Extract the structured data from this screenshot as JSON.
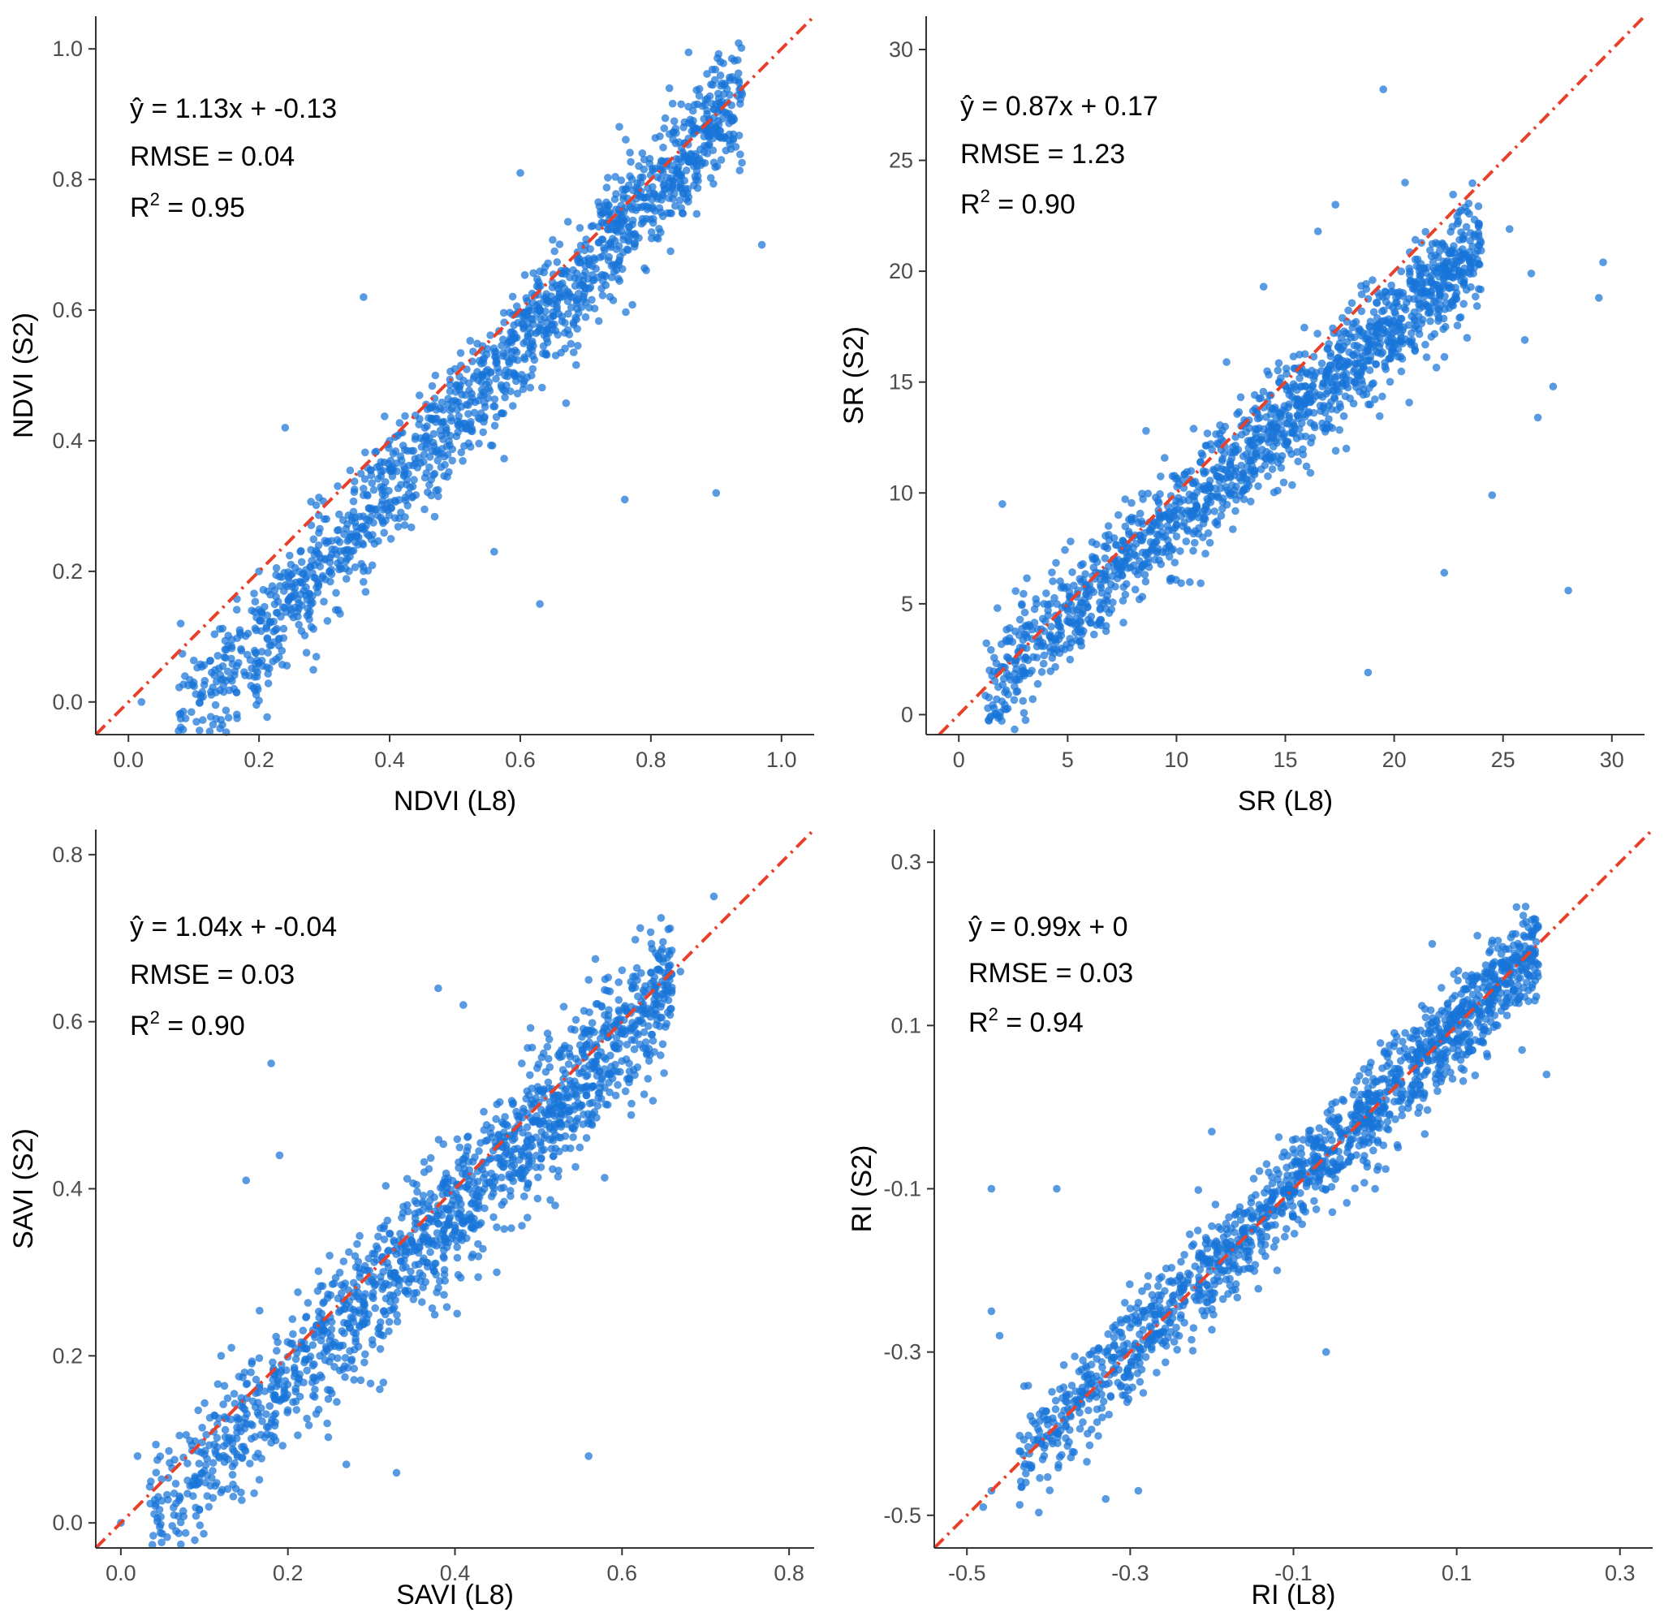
{
  "colors": {
    "points": "#1874d8",
    "reference_line": "#e8412b",
    "axis": "#333333"
  },
  "chart_data": [
    {
      "type": "scatter",
      "id": "ndvi",
      "xlabel": "NDVI (L8)",
      "ylabel": "NDVI (S2)",
      "xlim": [
        -0.05,
        1.05
      ],
      "ylim": [
        -0.05,
        1.05
      ],
      "xticks": [
        0.0,
        0.2,
        0.4,
        0.6,
        0.8,
        1.0
      ],
      "xtick_labels": [
        "0.0",
        "0.2",
        "0.4",
        "0.6",
        "0.8",
        "1.0"
      ],
      "yticks": [
        0.0,
        0.2,
        0.4,
        0.6,
        0.8,
        1.0
      ],
      "ytick_labels": [
        "0.0",
        "0.2",
        "0.4",
        "0.6",
        "0.8",
        "1.0"
      ],
      "reference_line": "1:1",
      "annotation": {
        "equation": "ŷ = 1.13x + -0.13",
        "rmse": "RMSE = 0.04",
        "r2_label": "R",
        "r2_value": " = 0.95"
      },
      "points": [
        [
          0.02,
          0.0
        ],
        [
          0.08,
          0.12
        ],
        [
          0.1,
          0.03
        ],
        [
          0.15,
          0.08
        ],
        [
          0.24,
          0.42
        ],
        [
          0.36,
          0.62
        ],
        [
          0.9,
          0.32
        ],
        [
          0.56,
          0.23
        ],
        [
          0.63,
          0.15
        ],
        [
          0.76,
          0.31
        ],
        [
          0.47,
          0.5
        ],
        [
          0.6,
          0.81
        ],
        [
          0.97,
          0.7
        ],
        [
          0.93,
          0.85
        ],
        [
          0.2,
          0.2
        ],
        [
          0.3,
          0.28
        ],
        [
          0.4,
          0.4
        ],
        [
          0.5,
          0.51
        ],
        [
          0.7,
          0.7
        ],
        [
          0.85,
          0.88
        ]
      ],
      "cloud": {
        "n": 1500,
        "x_min": 0.07,
        "x_max": 0.94,
        "slope": 1.13,
        "intercept": -0.13,
        "noise": 0.045,
        "seed": 11
      }
    },
    {
      "type": "scatter",
      "id": "sr",
      "xlabel": "SR (L8)",
      "ylabel": "SR (S2)",
      "xlim": [
        -1.5,
        31.5
      ],
      "ylim": [
        -0.9,
        31.5
      ],
      "xticks": [
        0,
        5,
        10,
        15,
        20,
        25,
        30
      ],
      "xtick_labels": [
        "0",
        "5",
        "10",
        "15",
        "20",
        "25",
        "30"
      ],
      "yticks": [
        0,
        5,
        10,
        15,
        20,
        25,
        30
      ],
      "ytick_labels": [
        "0",
        "5",
        "10",
        "15",
        "20",
        "25",
        "30"
      ],
      "reference_line": "1:1",
      "annotation": {
        "equation": "ŷ = 0.87x + 0.17",
        "rmse": "RMSE = 1.23",
        "r2_label": "R",
        "r2_value": " = 0.90"
      },
      "points": [
        [
          19.5,
          28.2
        ],
        [
          20.5,
          24
        ],
        [
          28,
          5.6
        ],
        [
          29.6,
          20.4
        ],
        [
          26.6,
          13.4
        ],
        [
          27.3,
          14.8
        ],
        [
          25.3,
          21.9
        ],
        [
          26.3,
          19.9
        ],
        [
          22.3,
          6.4
        ],
        [
          18.8,
          1.9
        ],
        [
          2,
          9.5
        ],
        [
          24.5,
          9.9
        ],
        [
          26,
          16.9
        ],
        [
          29.4,
          18.8
        ],
        [
          17.3,
          23
        ],
        [
          16.5,
          21.8
        ],
        [
          12.3,
          15.9
        ],
        [
          8.6,
          12.8
        ],
        [
          14,
          19.3
        ],
        [
          23,
          17.9
        ]
      ],
      "cloud": {
        "n": 1500,
        "x_min": 1.0,
        "x_max": 24.0,
        "slope": 0.87,
        "intercept": 0.17,
        "noise": 1.2,
        "seed": 23
      }
    },
    {
      "type": "scatter",
      "id": "savi",
      "xlabel": "SAVI (L8)",
      "ylabel": "SAVI (S2)",
      "xlim": [
        -0.03,
        0.83
      ],
      "ylim": [
        -0.03,
        0.83
      ],
      "xticks": [
        0.0,
        0.2,
        0.4,
        0.6,
        0.8
      ],
      "xtick_labels": [
        "0.0",
        "0.2",
        "0.4",
        "0.6",
        "0.8"
      ],
      "yticks": [
        0.0,
        0.2,
        0.4,
        0.6,
        0.8
      ],
      "ytick_labels": [
        "0.0",
        "0.2",
        "0.4",
        "0.6",
        "0.8"
      ],
      "reference_line": "1:1",
      "annotation": {
        "equation": "ŷ = 1.04x + -0.04",
        "rmse": "RMSE = 0.03",
        "r2_label": "R",
        "r2_value": " = 0.90"
      },
      "points": [
        [
          0.0,
          0.0
        ],
        [
          0.02,
          0.08
        ],
        [
          0.18,
          0.55
        ],
        [
          0.19,
          0.44
        ],
        [
          0.15,
          0.41
        ],
        [
          0.56,
          0.08
        ],
        [
          0.71,
          0.75
        ],
        [
          0.56,
          0.65
        ],
        [
          0.38,
          0.64
        ],
        [
          0.41,
          0.62
        ],
        [
          0.31,
          0.16
        ],
        [
          0.33,
          0.06
        ],
        [
          0.27,
          0.07
        ],
        [
          0.6,
          0.59
        ],
        [
          0.67,
          0.66
        ],
        [
          0.12,
          0.2
        ],
        [
          0.45,
          0.3
        ],
        [
          0.52,
          0.38
        ],
        [
          0.25,
          0.32
        ],
        [
          0.48,
          0.55
        ]
      ],
      "cloud": {
        "n": 1500,
        "x_min": 0.03,
        "x_max": 0.66,
        "slope": 1.04,
        "intercept": -0.04,
        "noise": 0.04,
        "seed": 37
      }
    },
    {
      "type": "scatter",
      "id": "ri",
      "xlabel": "RI (L8)",
      "ylabel": "RI (S2)",
      "xlim": [
        -0.54,
        0.34
      ],
      "ylim": [
        -0.54,
        0.34
      ],
      "xticks": [
        -0.5,
        -0.3,
        -0.1,
        0.1,
        0.3
      ],
      "xtick_labels": [
        "-0.5",
        "-0.3",
        "-0.1",
        "0.1",
        "0.3"
      ],
      "yticks": [
        -0.5,
        -0.3,
        -0.1,
        0.1,
        0.3
      ],
      "ytick_labels": [
        "-0.5",
        "-0.3",
        "-0.1",
        "0.1",
        "0.3"
      ],
      "reference_line": "1:1",
      "annotation": {
        "equation": "ŷ = 0.99x + 0",
        "rmse": "RMSE = 0.03",
        "r2_label": "R",
        "r2_value": " = 0.94"
      },
      "points": [
        [
          -0.47,
          -0.1
        ],
        [
          -0.39,
          -0.1
        ],
        [
          -0.47,
          -0.47
        ],
        [
          -0.48,
          -0.49
        ],
        [
          -0.46,
          -0.28
        ],
        [
          -0.47,
          -0.25
        ],
        [
          0.21,
          0.04
        ],
        [
          0.18,
          0.07
        ],
        [
          0.19,
          0.16
        ],
        [
          0.07,
          0.2
        ],
        [
          -0.33,
          -0.48
        ],
        [
          -0.29,
          -0.47
        ],
        [
          -0.12,
          -0.2
        ],
        [
          -0.06,
          -0.3
        ],
        [
          0.0,
          -0.1
        ],
        [
          -0.2,
          -0.03
        ],
        [
          0.1,
          0.11
        ],
        [
          -0.15,
          -0.15
        ],
        [
          0.15,
          0.1
        ],
        [
          -0.35,
          -0.34
        ]
      ],
      "cloud": {
        "n": 1500,
        "x_min": -0.44,
        "x_max": 0.2,
        "slope": 0.99,
        "intercept": 0.0,
        "noise": 0.03,
        "seed": 51
      }
    }
  ]
}
